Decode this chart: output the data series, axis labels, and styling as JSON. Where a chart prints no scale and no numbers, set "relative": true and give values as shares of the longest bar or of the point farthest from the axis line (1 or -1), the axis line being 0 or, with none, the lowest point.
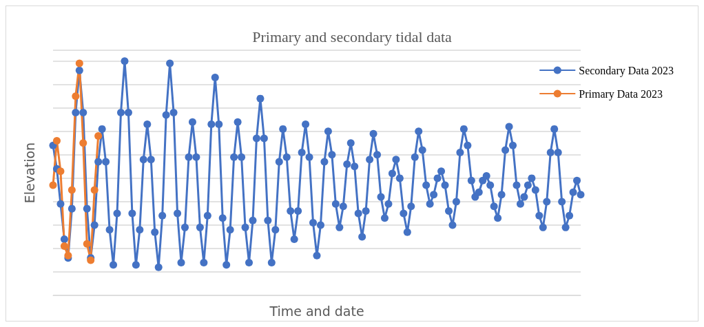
{
  "chart_data": {
    "type": "line",
    "title": "Primary and secondary tidal data",
    "xlabel": "Time and date",
    "ylabel": "Elevation",
    "relative": true,
    "grid": "y",
    "legend": "top right",
    "marker": "circle",
    "line_style": "solid",
    "categories": [
      null,
      null,
      null,
      null,
      null,
      null,
      null,
      null,
      null,
      null,
      null,
      null,
      null,
      null,
      null,
      null,
      null,
      null,
      null,
      null,
      null,
      null,
      null,
      null,
      null,
      null,
      null,
      null,
      null,
      null,
      null,
      null,
      null,
      null,
      null,
      null,
      null,
      null,
      null,
      null,
      null,
      null,
      null,
      null,
      null,
      null,
      null,
      null,
      null,
      null,
      null,
      null,
      null,
      null,
      null,
      null,
      null,
      null,
      null,
      null,
      null,
      null,
      null,
      null,
      null,
      null,
      null,
      null,
      null,
      null,
      null,
      null,
      null,
      null,
      null,
      null,
      null,
      null,
      null,
      null,
      null,
      null,
      null,
      null,
      null,
      null,
      null,
      null,
      null,
      null,
      null,
      null,
      null,
      null,
      null,
      null,
      null,
      null,
      null,
      null,
      null,
      null,
      null,
      null,
      null,
      null,
      null,
      null,
      null,
      null,
      null,
      null,
      null,
      null,
      null,
      null,
      null,
      null,
      null,
      null,
      null,
      null,
      null,
      null,
      null,
      null,
      null,
      null,
      null,
      null,
      null,
      null,
      null,
      null,
      null,
      null,
      null,
      null,
      null,
      null,
      null
    ],
    "series": [
      {
        "name": "Secondary Data 2023",
        "color": "#4472c4",
        "values": [
          0.64,
          0.54,
          0.39,
          0.24,
          0.16,
          0.37,
          0.78,
          0.96,
          0.78,
          0.37,
          0.16,
          0.3,
          0.57,
          0.71,
          0.57,
          0.28,
          0.13,
          0.35,
          0.78,
          1.0,
          0.78,
          0.35,
          0.13,
          0.28,
          0.58,
          0.73,
          0.58,
          0.27,
          0.12,
          0.34,
          0.77,
          0.99,
          0.78,
          0.35,
          0.14,
          0.29,
          0.59,
          0.74,
          0.59,
          0.29,
          0.14,
          0.34,
          0.73,
          0.93,
          0.73,
          0.33,
          0.13,
          0.28,
          0.59,
          0.74,
          0.59,
          0.29,
          0.14,
          0.32,
          0.67,
          0.84,
          0.67,
          0.32,
          0.14,
          0.28,
          0.57,
          0.71,
          0.59,
          0.36,
          0.24,
          0.36,
          0.61,
          0.73,
          0.59,
          0.31,
          0.17,
          0.3,
          0.57,
          0.7,
          0.6,
          0.39,
          0.29,
          0.38,
          0.56,
          0.65,
          0.55,
          0.35,
          0.25,
          0.36,
          0.58,
          0.69,
          0.6,
          0.42,
          0.33,
          0.39,
          0.52,
          0.58,
          0.5,
          0.35,
          0.27,
          0.38,
          0.59,
          0.7,
          0.62,
          0.47,
          0.39,
          0.43,
          0.5,
          0.53,
          0.47,
          0.36,
          0.3,
          0.4,
          0.61,
          0.71,
          0.64,
          0.49,
          0.42,
          0.44,
          0.49,
          0.51,
          0.47,
          0.38,
          0.33,
          0.43,
          0.62,
          0.72,
          0.64,
          0.47,
          0.39,
          0.42,
          0.47,
          0.5,
          0.45,
          0.34,
          0.29,
          0.4,
          0.61,
          0.71,
          0.61,
          0.4,
          0.29,
          0.34,
          0.44,
          0.49,
          0.43
        ]
      },
      {
        "name": "Primary Data 2023",
        "color": "#ed7d31",
        "values": [
          0.47,
          0.66,
          0.53,
          0.21,
          0.17,
          0.45,
          0.85,
          0.99,
          0.65,
          0.22,
          0.15,
          0.45,
          0.68,
          null,
          null,
          null,
          null,
          null,
          null,
          null,
          null,
          null,
          null,
          null,
          null,
          null,
          null,
          null,
          null,
          null,
          null,
          null,
          null,
          null,
          null,
          null,
          null,
          null,
          null,
          null,
          null,
          null,
          null,
          null,
          null,
          null,
          null,
          null,
          null,
          null,
          null,
          null,
          null,
          null,
          null,
          null,
          null,
          null,
          null,
          null,
          null,
          null,
          null,
          null,
          null,
          null,
          null,
          null,
          null,
          null,
          null,
          null,
          null,
          null,
          null,
          null,
          null,
          null,
          null,
          null,
          null,
          null,
          null,
          null,
          null,
          null,
          null,
          null,
          null,
          null,
          null,
          null,
          null,
          null,
          null,
          null,
          null,
          null,
          null,
          null,
          null,
          null,
          null,
          null,
          null,
          null,
          null,
          null,
          null,
          null,
          null,
          null,
          null,
          null,
          null,
          null,
          null,
          null,
          null,
          null,
          null,
          null,
          null,
          null,
          null,
          null,
          null,
          null,
          null,
          null,
          null,
          null,
          null,
          null,
          null,
          null,
          null,
          null,
          null,
          null,
          null
        ]
      }
    ]
  }
}
